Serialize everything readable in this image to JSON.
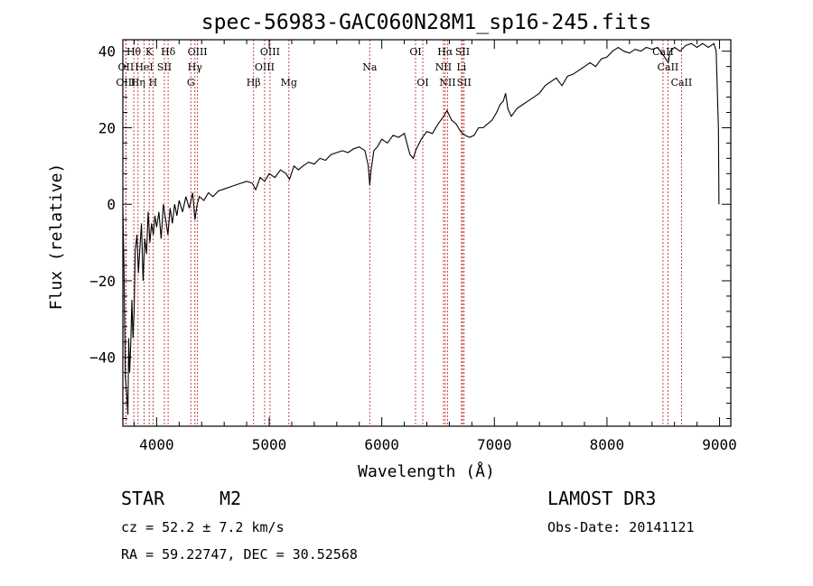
{
  "chart_data": {
    "type": "line",
    "title": "spec-56983-GAC060N28M1_sp16-245.fits",
    "xlabel": "Wavelength (Å)",
    "ylabel": "Flux (relative)",
    "xlim": [
      3700,
      9100
    ],
    "ylim": [
      -58,
      43
    ],
    "xticks": [
      4000,
      5000,
      6000,
      7000,
      8000,
      9000
    ],
    "yticks": [
      -40,
      -20,
      0,
      20,
      40
    ],
    "series": [
      {
        "name": "flux",
        "points": [
          [
            3700,
            -1
          ],
          [
            3710,
            -16
          ],
          [
            3722,
            -45
          ],
          [
            3735,
            -50
          ],
          [
            3745,
            -55
          ],
          [
            3752,
            -35
          ],
          [
            3760,
            -44
          ],
          [
            3770,
            -37
          ],
          [
            3780,
            -25
          ],
          [
            3790,
            -35
          ],
          [
            3800,
            -28
          ],
          [
            3810,
            -12
          ],
          [
            3825,
            -8
          ],
          [
            3838,
            -18
          ],
          [
            3850,
            -12
          ],
          [
            3865,
            -5
          ],
          [
            3880,
            -20
          ],
          [
            3895,
            -9
          ],
          [
            3910,
            -13
          ],
          [
            3925,
            -2
          ],
          [
            3940,
            -10
          ],
          [
            3955,
            -5
          ],
          [
            3970,
            -8
          ],
          [
            3985,
            -3
          ],
          [
            4000,
            -6
          ],
          [
            4020,
            -2
          ],
          [
            4040,
            -9
          ],
          [
            4060,
            0
          ],
          [
            4080,
            -4
          ],
          [
            4100,
            -8
          ],
          [
            4120,
            -1
          ],
          [
            4140,
            -5
          ],
          [
            4160,
            0
          ],
          [
            4180,
            -3
          ],
          [
            4200,
            1
          ],
          [
            4230,
            -2
          ],
          [
            4260,
            2
          ],
          [
            4290,
            -1
          ],
          [
            4320,
            3
          ],
          [
            4340,
            -4
          ],
          [
            4360,
            0
          ],
          [
            4380,
            2
          ],
          [
            4420,
            1
          ],
          [
            4460,
            3
          ],
          [
            4500,
            2
          ],
          [
            4550,
            3.5
          ],
          [
            4600,
            4
          ],
          [
            4650,
            4.5
          ],
          [
            4700,
            5
          ],
          [
            4750,
            5.5
          ],
          [
            4800,
            6
          ],
          [
            4850,
            5.5
          ],
          [
            4880,
            3.8
          ],
          [
            4920,
            7
          ],
          [
            4960,
            6
          ],
          [
            5000,
            8
          ],
          [
            5050,
            7
          ],
          [
            5100,
            9
          ],
          [
            5150,
            8
          ],
          [
            5180,
            6.5
          ],
          [
            5220,
            10
          ],
          [
            5260,
            9
          ],
          [
            5300,
            10
          ],
          [
            5350,
            11
          ],
          [
            5400,
            10.5
          ],
          [
            5450,
            12
          ],
          [
            5500,
            11.5
          ],
          [
            5550,
            13
          ],
          [
            5600,
            13.5
          ],
          [
            5650,
            14
          ],
          [
            5700,
            13.5
          ],
          [
            5750,
            14.5
          ],
          [
            5800,
            15
          ],
          [
            5850,
            14
          ],
          [
            5880,
            10
          ],
          [
            5893,
            5
          ],
          [
            5905,
            9
          ],
          [
            5930,
            14
          ],
          [
            5960,
            15
          ],
          [
            6000,
            17
          ],
          [
            6050,
            16
          ],
          [
            6100,
            18
          ],
          [
            6150,
            17.5
          ],
          [
            6200,
            18.5
          ],
          [
            6250,
            13
          ],
          [
            6280,
            12
          ],
          [
            6300,
            14
          ],
          [
            6350,
            17
          ],
          [
            6400,
            19
          ],
          [
            6450,
            18.5
          ],
          [
            6500,
            21
          ],
          [
            6550,
            23
          ],
          [
            6580,
            24.5
          ],
          [
            6620,
            22
          ],
          [
            6660,
            21
          ],
          [
            6700,
            19
          ],
          [
            6740,
            18
          ],
          [
            6780,
            17.5
          ],
          [
            6820,
            18
          ],
          [
            6860,
            20
          ],
          [
            6900,
            20
          ],
          [
            6940,
            21
          ],
          [
            6980,
            22
          ],
          [
            7020,
            24
          ],
          [
            7050,
            26
          ],
          [
            7080,
            27
          ],
          [
            7100,
            29
          ],
          [
            7120,
            25
          ],
          [
            7150,
            23
          ],
          [
            7200,
            25
          ],
          [
            7250,
            26
          ],
          [
            7300,
            27
          ],
          [
            7350,
            28
          ],
          [
            7400,
            29
          ],
          [
            7450,
            31
          ],
          [
            7500,
            32
          ],
          [
            7550,
            33
          ],
          [
            7600,
            31
          ],
          [
            7650,
            33.5
          ],
          [
            7700,
            34
          ],
          [
            7750,
            35
          ],
          [
            7800,
            36
          ],
          [
            7850,
            37
          ],
          [
            7900,
            36
          ],
          [
            7950,
            38
          ],
          [
            8000,
            38.5
          ],
          [
            8050,
            40
          ],
          [
            8100,
            41
          ],
          [
            8150,
            40
          ],
          [
            8200,
            39.5
          ],
          [
            8250,
            40.5
          ],
          [
            8300,
            40
          ],
          [
            8350,
            41
          ],
          [
            8400,
            40.5
          ],
          [
            8450,
            41
          ],
          [
            8500,
            39
          ],
          [
            8545,
            37
          ],
          [
            8560,
            40
          ],
          [
            8600,
            41
          ],
          [
            8650,
            40
          ],
          [
            8700,
            41.5
          ],
          [
            8750,
            42
          ],
          [
            8800,
            41
          ],
          [
            8850,
            42
          ],
          [
            8900,
            41
          ],
          [
            8950,
            42
          ],
          [
            8970,
            40
          ],
          [
            8990,
            20
          ],
          [
            8995,
            0
          ]
        ]
      }
    ],
    "spectral_lines": [
      {
        "label": "Hθ",
        "wavelength": 3797,
        "row": 0
      },
      {
        "label": "OII",
        "wavelength": 3727,
        "row": 1
      },
      {
        "label": "OIII",
        "wavelength": 3727,
        "row": 2
      },
      {
        "label": "K",
        "wavelength": 3934,
        "row": 0
      },
      {
        "label": "HeI",
        "wavelength": 3889,
        "row": 1
      },
      {
        "label": "Hη",
        "wavelength": 3835,
        "row": 2
      },
      {
        "label": "SII",
        "wavelength": 4069,
        "row": 1
      },
      {
        "label": "H",
        "wavelength": 3968,
        "row": 2
      },
      {
        "label": "Hδ",
        "wavelength": 4102,
        "row": 0
      },
      {
        "label": "OIII",
        "wavelength": 4363,
        "row": 0
      },
      {
        "label": "Hγ",
        "wavelength": 4340,
        "row": 1
      },
      {
        "label": "G",
        "wavelength": 4304,
        "row": 2
      },
      {
        "label": "Hβ",
        "wavelength": 4861,
        "row": 2
      },
      {
        "label": "OIII",
        "wavelength": 5007,
        "row": 0
      },
      {
        "label": "OIII",
        "wavelength": 4959,
        "row": 1
      },
      {
        "label": "Mg",
        "wavelength": 5175,
        "row": 2
      },
      {
        "label": "Na",
        "wavelength": 5893,
        "row": 1
      },
      {
        "label": "OI",
        "wavelength": 6300,
        "row": 0
      },
      {
        "label": "OI",
        "wavelength": 6364,
        "row": 2
      },
      {
        "label": "Hα",
        "wavelength": 6563,
        "row": 0
      },
      {
        "label": "SII",
        "wavelength": 6717,
        "row": 0
      },
      {
        "label": "NII",
        "wavelength": 6548,
        "row": 1
      },
      {
        "label": "Li",
        "wavelength": 6708,
        "row": 1
      },
      {
        "label": "NII",
        "wavelength": 6584,
        "row": 2
      },
      {
        "label": "SII",
        "wavelength": 6731,
        "row": 2
      },
      {
        "label": "CaII",
        "wavelength": 8498,
        "row": 0
      },
      {
        "label": "CaII",
        "wavelength": 8542,
        "row": 1
      },
      {
        "label": "CaII",
        "wavelength": 8662,
        "row": 2
      }
    ]
  },
  "info": {
    "object_class": "STAR",
    "subclass": "M2",
    "survey": "LAMOST DR3",
    "cz": "cz = 52.2 ± 7.2 km/s",
    "obs_date": "Obs-Date: 20141121",
    "coords": "RA =  59.22747, DEC =  30.52568"
  }
}
